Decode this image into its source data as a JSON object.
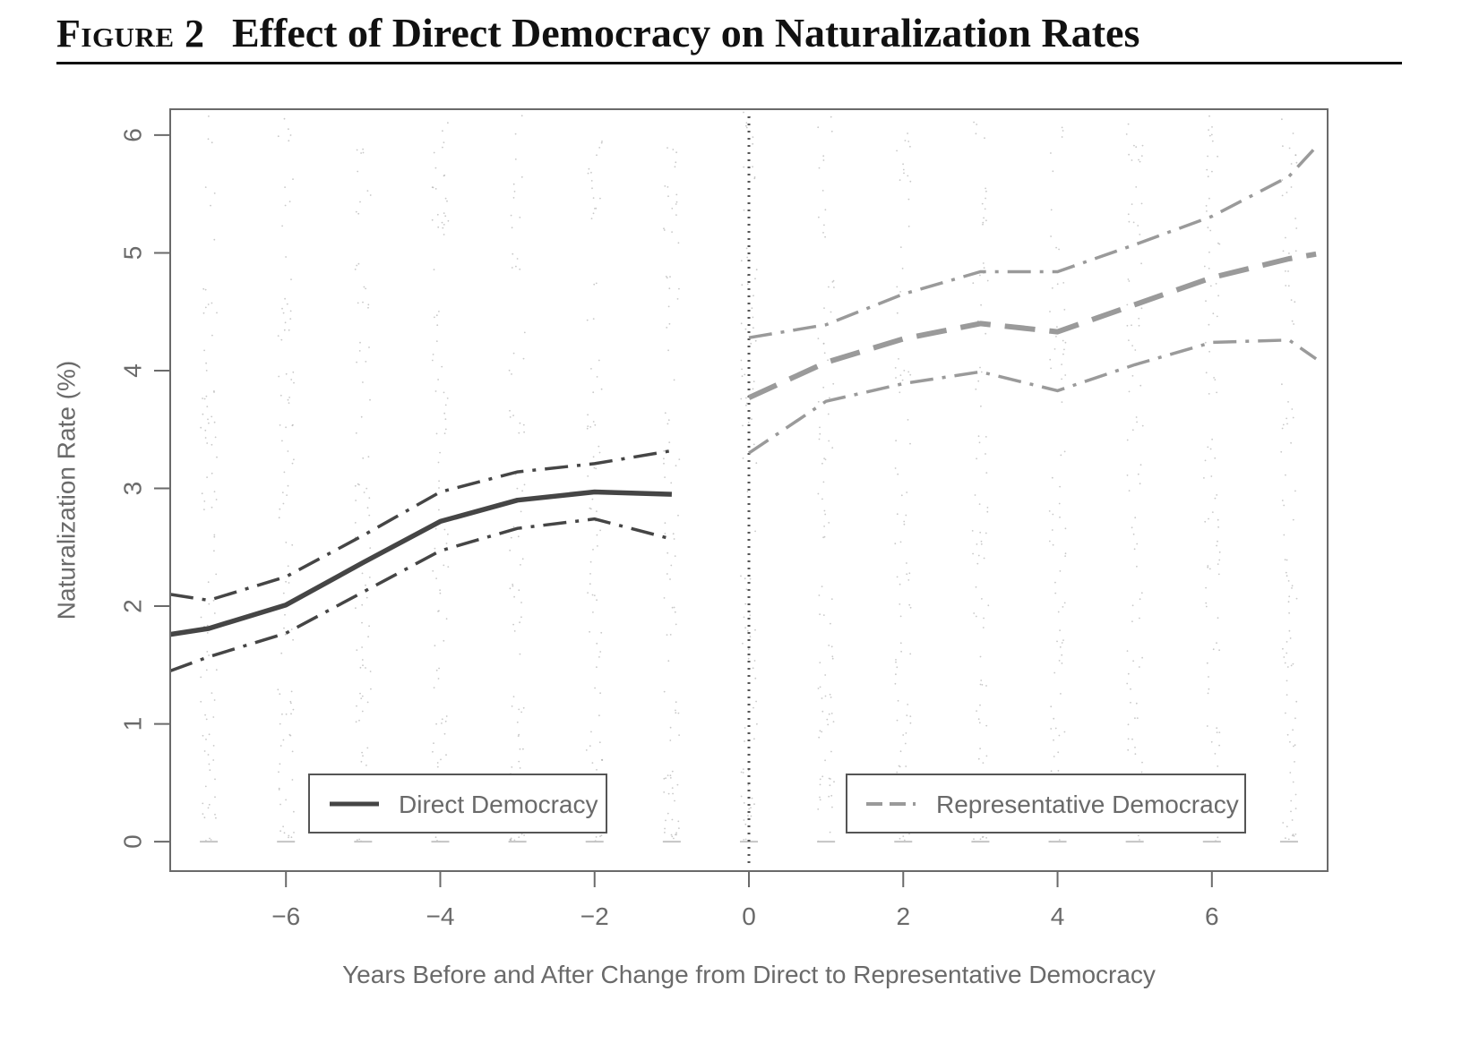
{
  "figure": {
    "label": "Figure 2",
    "title": "Effect of Direct Democracy on Naturalization Rates"
  },
  "chart_data": {
    "type": "line",
    "xlabel": "Years Before and After Change from Direct to Representative Democracy",
    "ylabel": "Naturalization Rate (%)",
    "xlim": [
      -7.5,
      7.5
    ],
    "ylim": [
      -0.25,
      6.22
    ],
    "x_ticks": [
      -6,
      -4,
      -2,
      0,
      2,
      4,
      6
    ],
    "x_tick_labels": [
      "−6",
      "−4",
      "−2",
      "0",
      "2",
      "4",
      "6"
    ],
    "y_ticks": [
      0,
      1,
      2,
      3,
      4,
      5,
      6
    ],
    "y_tick_labels": [
      "0",
      "1",
      "2",
      "3",
      "4",
      "5",
      "6"
    ],
    "grid": false,
    "legend_placement": "bottom",
    "vertical_reference_line": 0,
    "colors": {
      "direct": "#454545",
      "representative": "#9a9a9a",
      "points": "#b0b0b0"
    },
    "series": [
      {
        "name": "Direct Democracy",
        "style": "solid",
        "x": [
          -7.5,
          -7,
          -6,
          -5,
          -4,
          -3,
          -2,
          -1
        ],
        "y": [
          1.76,
          1.81,
          2.01,
          2.37,
          2.72,
          2.9,
          2.97,
          2.95
        ],
        "ci_upper": [
          2.1,
          2.05,
          2.25,
          2.6,
          2.97,
          3.14,
          3.21,
          3.32
        ],
        "ci_lower": [
          1.45,
          1.57,
          1.77,
          2.12,
          2.47,
          2.66,
          2.74,
          2.57
        ]
      },
      {
        "name": "Representative Democracy",
        "style": "dashed",
        "x": [
          0,
          1,
          2,
          3,
          4,
          5,
          6,
          7,
          7.35
        ],
        "y": [
          3.77,
          4.07,
          4.27,
          4.4,
          4.33,
          4.56,
          4.79,
          4.95,
          4.99
        ],
        "ci_upper": [
          4.28,
          4.39,
          4.65,
          4.84,
          4.84,
          5.07,
          5.31,
          5.65,
          5.9
        ],
        "ci_lower": [
          3.3,
          3.74,
          3.89,
          3.99,
          3.83,
          4.05,
          4.24,
          4.26,
          4.1
        ]
      }
    ]
  }
}
